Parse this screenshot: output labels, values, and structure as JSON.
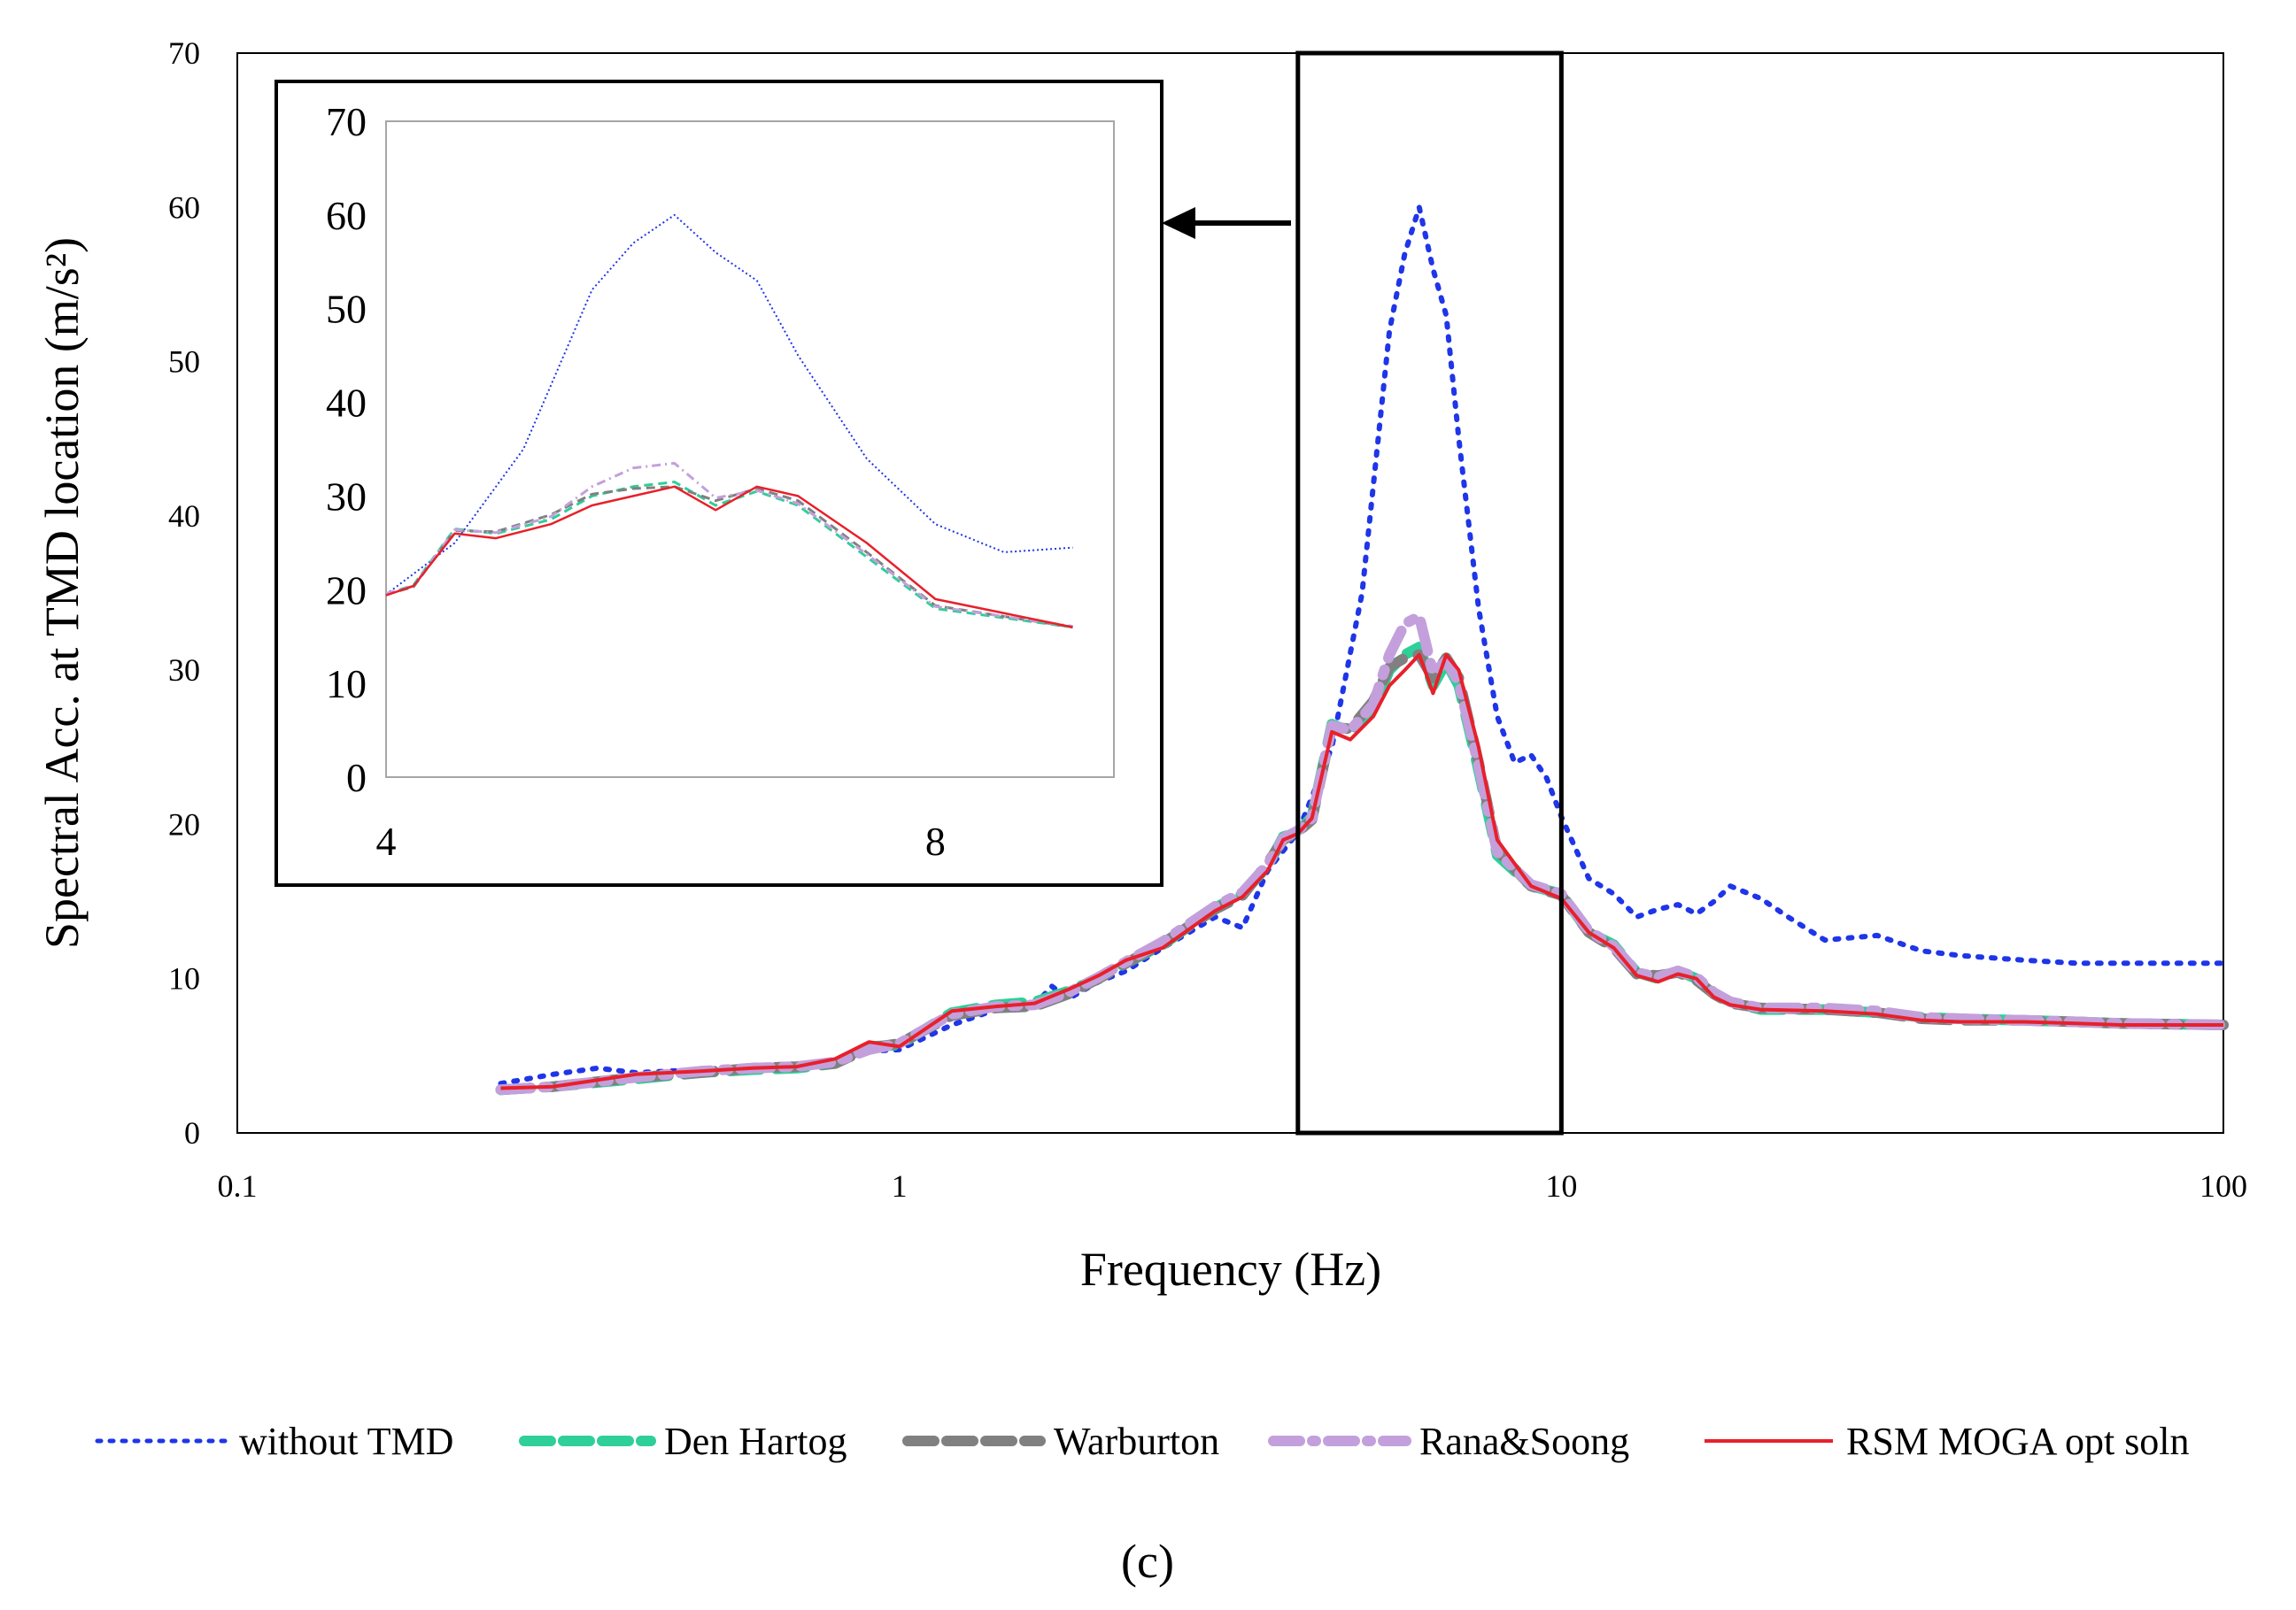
{
  "chart_data": {
    "type": "line",
    "title": "",
    "xlabel": "Frequency (Hz)",
    "ylabel": "Spectral Acc. at TMD location (m/s²)",
    "xscale": "log",
    "xlim": [
      0.1,
      100
    ],
    "ylim": [
      0,
      70
    ],
    "x_ticks": [
      0.1,
      1,
      10,
      100
    ],
    "x_tick_labels": [
      "0.1",
      "1",
      "10",
      "100"
    ],
    "y_ticks": [
      0,
      10,
      20,
      30,
      40,
      50,
      60,
      70
    ],
    "y_tick_labels": [
      "0",
      "10",
      "20",
      "30",
      "40",
      "50",
      "60",
      "70"
    ],
    "grid": false,
    "legend_position": "bottom",
    "highlight_box_x": [
      4,
      10
    ],
    "caption": "(c)",
    "series": [
      {
        "name": "without TMD",
        "color": "#1f35e8",
        "style": "dotted",
        "x": [
          0.25,
          0.3,
          0.35,
          0.4,
          0.5,
          0.6,
          0.7,
          0.8,
          0.9,
          1.0,
          1.2,
          1.4,
          1.6,
          1.7,
          1.8,
          2.0,
          2.2,
          2.5,
          3.0,
          3.3,
          3.6,
          4.0,
          4.5,
          5.0,
          5.5,
          5.8,
          6.1,
          6.4,
          6.7,
          7.0,
          7.5,
          8.0,
          8.5,
          9.0,
          9.5,
          10.0,
          11,
          12,
          13,
          14,
          15,
          16,
          17,
          18,
          20,
          22,
          25,
          30,
          35,
          40,
          50,
          60,
          70,
          100
        ],
        "y": [
          3.2,
          3.8,
          4.2,
          3.9,
          4.1,
          4.3,
          4.4,
          4.6,
          5.3,
          5.4,
          7.0,
          8.0,
          8.3,
          9.5,
          8.7,
          9.8,
          10.5,
          12.0,
          14.0,
          13.3,
          17.0,
          19.5,
          25.0,
          35.0,
          52.0,
          57.0,
          60.0,
          56.0,
          53.0,
          45.0,
          34.0,
          27.0,
          24.0,
          24.5,
          23.0,
          20.5,
          16.5,
          15.5,
          14.0,
          14.5,
          14.8,
          14.2,
          15.0,
          16.0,
          15.2,
          14.0,
          12.5,
          12.8,
          11.8,
          11.5,
          11.2,
          11.0,
          11.0,
          11.0
        ]
      },
      {
        "name": "Den Hartog",
        "color": "#2ecf98",
        "style": "dashed",
        "x": [
          0.25,
          0.3,
          0.4,
          0.5,
          0.6,
          0.7,
          0.8,
          0.9,
          1.0,
          1.2,
          1.4,
          1.6,
          1.8,
          2.0,
          2.2,
          2.5,
          3.0,
          3.3,
          3.6,
          3.8,
          4.0,
          4.2,
          4.5,
          4.8,
          5.2,
          5.5,
          5.8,
          6.1,
          6.4,
          6.7,
          7.0,
          7.5,
          8.0,
          9.0,
          10,
          11,
          12,
          13,
          14,
          15,
          16,
          17,
          18,
          20,
          25,
          30,
          35,
          40,
          50,
          60,
          70,
          100
        ],
        "y": [
          2.8,
          3.0,
          3.5,
          3.9,
          4.1,
          4.2,
          4.5,
          5.6,
          5.7,
          7.8,
          8.3,
          8.5,
          9.2,
          10.0,
          11.0,
          12.2,
          14.6,
          15.5,
          17.3,
          19.2,
          19.5,
          20.5,
          26.5,
          26.0,
          27.5,
          30.0,
          31.0,
          31.5,
          29.0,
          30.5,
          29.0,
          23.5,
          18.0,
          16.0,
          15.5,
          13.0,
          12.2,
          10.4,
          10.0,
          10.5,
          10.0,
          9.0,
          8.5,
          8.0,
          8.0,
          7.8,
          7.5,
          7.4,
          7.3,
          7.2,
          7.1,
          7.0
        ]
      },
      {
        "name": "Warburton",
        "color": "#808080",
        "style": "dashed",
        "x": [
          0.25,
          0.3,
          0.4,
          0.5,
          0.6,
          0.7,
          0.8,
          0.9,
          1.0,
          1.2,
          1.4,
          1.6,
          1.8,
          2.0,
          2.2,
          2.5,
          3.0,
          3.3,
          3.6,
          3.8,
          4.0,
          4.2,
          4.5,
          4.8,
          5.2,
          5.5,
          5.8,
          6.1,
          6.4,
          6.7,
          7.0,
          7.5,
          8.0,
          9.0,
          10,
          11,
          12,
          13,
          14,
          15,
          16,
          17,
          18,
          20,
          25,
          30,
          35,
          40,
          50,
          60,
          70,
          100
        ],
        "y": [
          2.8,
          3.0,
          3.6,
          3.9,
          4.2,
          4.3,
          4.5,
          5.5,
          5.8,
          7.6,
          8.1,
          8.2,
          9.0,
          10.0,
          11.0,
          12.3,
          14.5,
          15.4,
          17.5,
          19.0,
          19.5,
          20.3,
          26.3,
          26.2,
          28.0,
          30.2,
          30.8,
          31.0,
          29.5,
          30.8,
          29.5,
          24.0,
          18.3,
          16.0,
          15.4,
          13.0,
          12.0,
          10.3,
          10.2,
          10.4,
          9.9,
          9.0,
          8.4,
          8.1,
          8.0,
          7.8,
          7.4,
          7.3,
          7.3,
          7.2,
          7.1,
          7.0
        ]
      },
      {
        "name": "Rana&Soong",
        "color": "#c3a0dc",
        "style": "dash-dot",
        "x": [
          0.25,
          0.3,
          0.4,
          0.5,
          0.6,
          0.7,
          0.8,
          0.9,
          1.0,
          1.2,
          1.4,
          1.6,
          1.8,
          2.0,
          2.2,
          2.5,
          3.0,
          3.3,
          3.6,
          3.8,
          4.0,
          4.2,
          4.5,
          4.8,
          5.2,
          5.5,
          5.8,
          6.1,
          6.4,
          6.7,
          7.0,
          7.5,
          8.0,
          9.0,
          10,
          11,
          12,
          13,
          14,
          15,
          16,
          17,
          18,
          20,
          25,
          30,
          35,
          40,
          50,
          60,
          70,
          100
        ],
        "y": [
          2.8,
          3.0,
          3.6,
          4.0,
          4.2,
          4.3,
          4.6,
          5.4,
          5.8,
          7.7,
          8.2,
          8.3,
          9.1,
          10.1,
          11.1,
          12.4,
          14.7,
          15.6,
          17.4,
          19.1,
          19.6,
          20.4,
          26.4,
          26.1,
          27.8,
          31.0,
          33.0,
          33.5,
          29.8,
          30.6,
          29.2,
          23.8,
          18.2,
          16.1,
          15.5,
          13.1,
          12.1,
          10.4,
          10.1,
          10.5,
          10.1,
          9.1,
          8.5,
          8.1,
          8.1,
          7.9,
          7.5,
          7.4,
          7.3,
          7.2,
          7.1,
          7.0
        ]
      },
      {
        "name": "RSM MOGA opt soln",
        "color": "#e8202a",
        "style": "solid",
        "x": [
          0.25,
          0.3,
          0.4,
          0.5,
          0.6,
          0.7,
          0.8,
          0.9,
          1.0,
          1.2,
          1.4,
          1.6,
          1.8,
          2.0,
          2.2,
          2.5,
          3.0,
          3.3,
          3.6,
          3.8,
          4.0,
          4.2,
          4.5,
          4.8,
          5.2,
          5.5,
          5.8,
          6.1,
          6.4,
          6.7,
          7.0,
          7.5,
          8.0,
          9.0,
          10,
          11,
          12,
          13,
          14,
          15,
          16,
          17,
          18,
          20,
          25,
          30,
          35,
          40,
          50,
          60,
          70,
          100
        ],
        "y": [
          2.9,
          3.0,
          3.8,
          4.0,
          4.2,
          4.3,
          4.8,
          5.9,
          5.6,
          7.9,
          8.2,
          8.4,
          9.3,
          10.2,
          11.2,
          12.0,
          14.4,
          15.3,
          17.0,
          19.0,
          19.4,
          20.4,
          26.0,
          25.5,
          27.0,
          29.0,
          30.0,
          31.0,
          28.5,
          31.0,
          30.0,
          25.0,
          19.0,
          16.0,
          15.2,
          13.0,
          12.0,
          10.2,
          9.8,
          10.3,
          10.0,
          8.8,
          8.3,
          8.0,
          7.9,
          7.7,
          7.3,
          7.2,
          7.2,
          7.1,
          7.0,
          7.0
        ]
      }
    ],
    "inset": {
      "xlim": [
        4,
        9.3
      ],
      "ylim": [
        0,
        70
      ],
      "x_ticks": [
        4,
        8
      ],
      "x_tick_labels": [
        "4",
        "8"
      ],
      "y_ticks": [
        0,
        10,
        20,
        30,
        40,
        50,
        60,
        70
      ],
      "y_tick_labels": [
        "0",
        "10",
        "20",
        "30",
        "40",
        "50",
        "60",
        "70"
      ]
    }
  }
}
